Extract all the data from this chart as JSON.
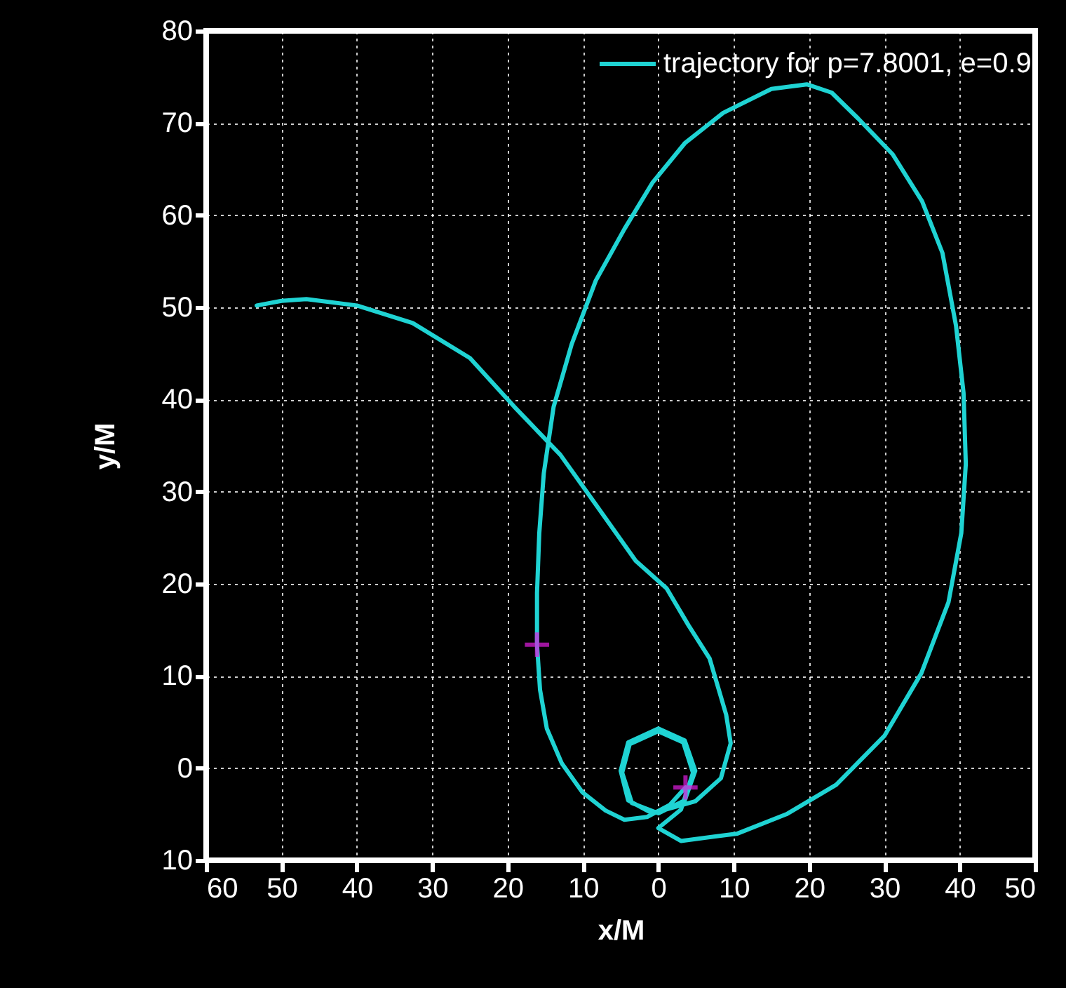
{
  "chart_data": {
    "type": "line",
    "xlabel": "x/M",
    "ylabel": "y/M",
    "xlim": [
      -60,
      50
    ],
    "ylim": [
      -10,
      80
    ],
    "xticks": [
      {
        "value": -60,
        "label": "60"
      },
      {
        "value": -50,
        "label": "50"
      },
      {
        "value": -40,
        "label": "40"
      },
      {
        "value": -30,
        "label": "30"
      },
      {
        "value": -20,
        "label": "20"
      },
      {
        "value": -10,
        "label": "10"
      },
      0,
      10,
      20,
      30,
      40,
      50
    ],
    "yticks": [
      {
        "value": -10,
        "label": "10"
      },
      0,
      10,
      20,
      30,
      40,
      50,
      60,
      70,
      80
    ],
    "grid": true,
    "legend": "top right",
    "series": [
      {
        "name": "trajectory for p=7.8001, e=0.9",
        "color": "#1fd3d3",
        "x": [
          -53.3,
          -50,
          -46.7,
          -40,
          -32.6,
          -25,
          -19.1,
          -13,
          -8.3,
          -3,
          1.1,
          4,
          6.8,
          9,
          9.6,
          8.3,
          4.9,
          -0.8,
          -4,
          -5,
          -4,
          0,
          3.5,
          4.9,
          3.5,
          0,
          -3.5,
          -4.8,
          -3.8,
          0,
          3.3,
          4.6,
          3,
          0,
          3,
          10.5,
          17,
          23.6,
          30,
          34.9,
          38.5,
          40.2,
          40.8,
          40.5,
          39.5,
          37.7,
          35,
          31.1,
          26.5,
          23,
          19.7,
          15,
          8.6,
          3.5,
          -0.8,
          -4.5,
          -8.3,
          -11.5,
          -13.9,
          -15.2,
          -15.8,
          -16.1,
          -16.1,
          -15.7,
          -14.8,
          -12.8,
          -10.1,
          -7,
          -4.5,
          -1.5,
          1.5,
          3.6
        ],
        "values": [
          50.2,
          50.7,
          50.9,
          50.2,
          48.3,
          44.5,
          39.2,
          34,
          28.6,
          22.5,
          19.5,
          15.5,
          11.9,
          5.8,
          2.7,
          -1.1,
          -3.6,
          -4.9,
          -3.5,
          -0.3,
          2.8,
          4.3,
          3,
          -0.3,
          -3.5,
          -4.9,
          -3.8,
          -0.5,
          2.6,
          4,
          2.8,
          -0.5,
          -4.5,
          -6.5,
          -7.9,
          -7.1,
          -5,
          -1.8,
          3.5,
          10.3,
          18,
          25.5,
          33,
          40.7,
          48,
          55.9,
          61.5,
          66.6,
          70.5,
          73.3,
          74.2,
          73.7,
          71.1,
          67.8,
          63.5,
          58.5,
          52.9,
          46,
          39.2,
          32,
          25.5,
          19,
          13.4,
          8.5,
          4.3,
          0.5,
          -2.6,
          -4.6,
          -5.6,
          -5.3,
          -4,
          -2.1
        ]
      },
      {
        "type": "scatter",
        "color": "#e01ee0",
        "marker": "cross",
        "x": [
          -16.1,
          3.6
        ],
        "values": [
          13.4,
          -2.1
        ]
      }
    ]
  }
}
